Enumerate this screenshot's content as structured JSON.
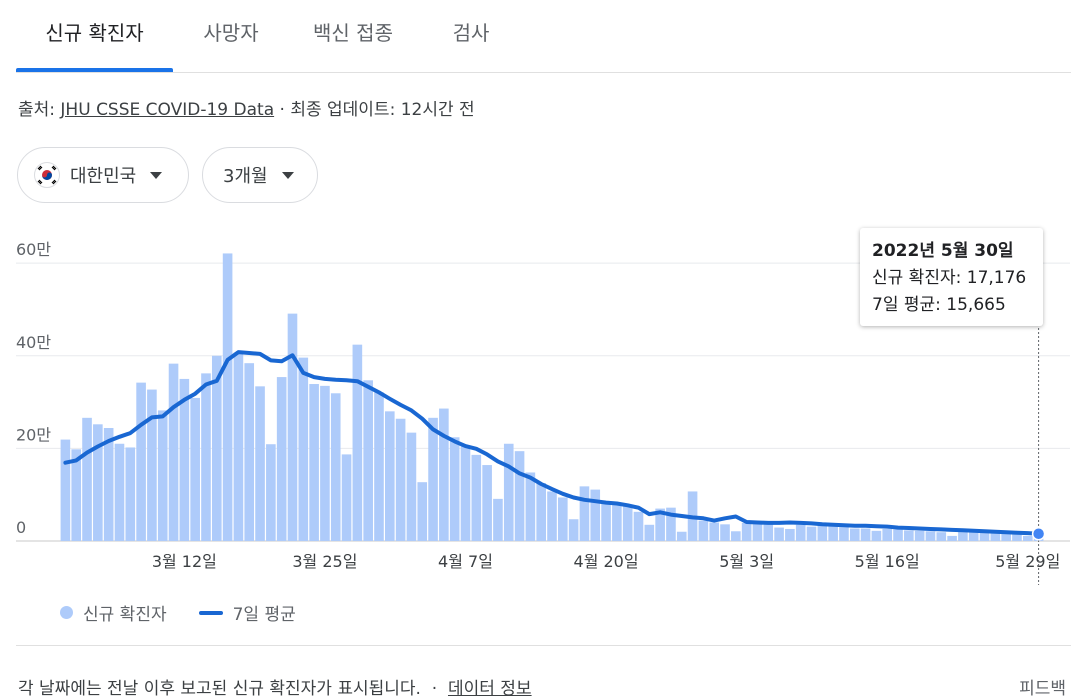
{
  "tabs": [
    {
      "label": "신규 확진자",
      "active": true
    },
    {
      "label": "사망자",
      "active": false
    },
    {
      "label": "백신 접종",
      "active": false
    },
    {
      "label": "검사",
      "active": false
    }
  ],
  "source": {
    "prefix": "출처:",
    "link": "JHU CSSE COVID-19 Data",
    "suffix": "· 최종 업데이트: 12시간 전"
  },
  "filters": {
    "country": "대한민국",
    "period": "3개월"
  },
  "tooltip": {
    "date": "2022년 5월 30일",
    "cases_label": "신규 확진자:",
    "cases_value": "17,176",
    "avg_label": "7일 평균:",
    "avg_value": "15,665"
  },
  "legend": {
    "bars": "신규 확진자",
    "line": "7일 평균"
  },
  "footer": {
    "note": "각 날짜에는 전날 이후 보고된 신규 확진자가 표시됩니다.",
    "sep": "·",
    "link": "데이터 정보",
    "feedback": "피드백"
  },
  "colors": {
    "bar": "#aecbfa",
    "line": "#1967d2",
    "accent": "#1a73e8",
    "grid": "#e8eaed"
  },
  "chart_data": {
    "type": "bar",
    "title": "",
    "xlabel": "",
    "ylabel": "",
    "ylim": [
      0,
      650000
    ],
    "y_ticks": [
      0,
      200000,
      400000,
      600000
    ],
    "y_tick_labels": [
      "0",
      "20만",
      "40만",
      "60만"
    ],
    "x": [
      "2022-03-01",
      "2022-03-02",
      "2022-03-03",
      "2022-03-04",
      "2022-03-05",
      "2022-03-06",
      "2022-03-07",
      "2022-03-08",
      "2022-03-09",
      "2022-03-10",
      "2022-03-11",
      "2022-03-12",
      "2022-03-13",
      "2022-03-14",
      "2022-03-15",
      "2022-03-16",
      "2022-03-17",
      "2022-03-18",
      "2022-03-19",
      "2022-03-20",
      "2022-03-21",
      "2022-03-22",
      "2022-03-23",
      "2022-03-24",
      "2022-03-25",
      "2022-03-26",
      "2022-03-27",
      "2022-03-28",
      "2022-03-29",
      "2022-03-30",
      "2022-03-31",
      "2022-04-01",
      "2022-04-02",
      "2022-04-03",
      "2022-04-04",
      "2022-04-05",
      "2022-04-06",
      "2022-04-07",
      "2022-04-08",
      "2022-04-09",
      "2022-04-10",
      "2022-04-11",
      "2022-04-12",
      "2022-04-13",
      "2022-04-14",
      "2022-04-15",
      "2022-04-16",
      "2022-04-17",
      "2022-04-18",
      "2022-04-19",
      "2022-04-20",
      "2022-04-21",
      "2022-04-22",
      "2022-04-23",
      "2022-04-24",
      "2022-04-25",
      "2022-04-26",
      "2022-04-27",
      "2022-04-28",
      "2022-04-29",
      "2022-04-30",
      "2022-05-01",
      "2022-05-02",
      "2022-05-03",
      "2022-05-04",
      "2022-05-05",
      "2022-05-06",
      "2022-05-07",
      "2022-05-08",
      "2022-05-09",
      "2022-05-10",
      "2022-05-11",
      "2022-05-12",
      "2022-05-13",
      "2022-05-14",
      "2022-05-15",
      "2022-05-16",
      "2022-05-17",
      "2022-05-18",
      "2022-05-19",
      "2022-05-20",
      "2022-05-21",
      "2022-05-22",
      "2022-05-23",
      "2022-05-24",
      "2022-05-25",
      "2022-05-26",
      "2022-05-27",
      "2022-05-28",
      "2022-05-29",
      "2022-05-30"
    ],
    "x_tick_labels": [
      {
        "date": "2022-03-12",
        "label": "3월 12일"
      },
      {
        "date": "2022-03-25",
        "label": "3월 25일"
      },
      {
        "date": "2022-04-07",
        "label": "4월 7일"
      },
      {
        "date": "2022-04-20",
        "label": "4월 20일"
      },
      {
        "date": "2022-05-03",
        "label": "5월 3일"
      },
      {
        "date": "2022-05-16",
        "label": "5월 16일"
      },
      {
        "date": "2022-05-29",
        "label": "5월 29일"
      }
    ],
    "series": [
      {
        "name": "신규 확진자",
        "kind": "bar",
        "values": [
          219000,
          198000,
          266000,
          252000,
          244000,
          210000,
          202000,
          342000,
          327000,
          282000,
          383000,
          350000,
          309000,
          362000,
          400000,
          621000,
          407000,
          384000,
          334000,
          209000,
          354000,
          491000,
          396000,
          339000,
          335000,
          319000,
          187000,
          424000,
          347000,
          321000,
          280000,
          264000,
          234000,
          127000,
          266000,
          286000,
          224000,
          206000,
          186000,
          164000,
          91000,
          210000,
          194000,
          148000,
          125000,
          107000,
          94000,
          47000,
          118000,
          111000,
          83000,
          78000,
          75000,
          63000,
          35000,
          70000,
          72000,
          20000,
          107000,
          44000,
          40000,
          36000,
          21000,
          39000,
          44000,
          42000,
          29000,
          26000,
          35000,
          31000,
          35000,
          32000,
          30000,
          27000,
          27000,
          22000,
          26000,
          25000,
          23000,
          22000,
          21000,
          19000,
          11000,
          24000,
          19000,
          19000,
          17000,
          16000,
          15000,
          11000,
          17176
        ]
      },
      {
        "name": "7일 평균",
        "kind": "line",
        "values": [
          169000,
          174000,
          191000,
          204000,
          216000,
          225000,
          233000,
          251000,
          267000,
          269000,
          289000,
          305000,
          318000,
          338000,
          346000,
          391000,
          408000,
          406000,
          404000,
          390000,
          388000,
          401000,
          363000,
          354000,
          350000,
          348000,
          347000,
          345000,
          333000,
          321000,
          307000,
          294000,
          282000,
          264000,
          241000,
          227000,
          215000,
          205000,
          199000,
          187000,
          172000,
          161000,
          146000,
          137000,
          123000,
          112000,
          102000,
          94000,
          89000,
          86000,
          83000,
          81000,
          77000,
          72000,
          58000,
          62000,
          57000,
          54000,
          51000,
          49000,
          44000,
          49000,
          53000,
          41000,
          40000,
          39000,
          39000,
          40000,
          39000,
          38000,
          36000,
          35000,
          34000,
          33000,
          33000,
          32000,
          31000,
          29000,
          28000,
          27000,
          26000,
          25000,
          24000,
          23000,
          22000,
          21000,
          20000,
          19000,
          18000,
          17000,
          15665
        ]
      }
    ],
    "grid": true,
    "legend_position": "bottom-left",
    "highlight": {
      "date": "2022-05-30"
    }
  }
}
